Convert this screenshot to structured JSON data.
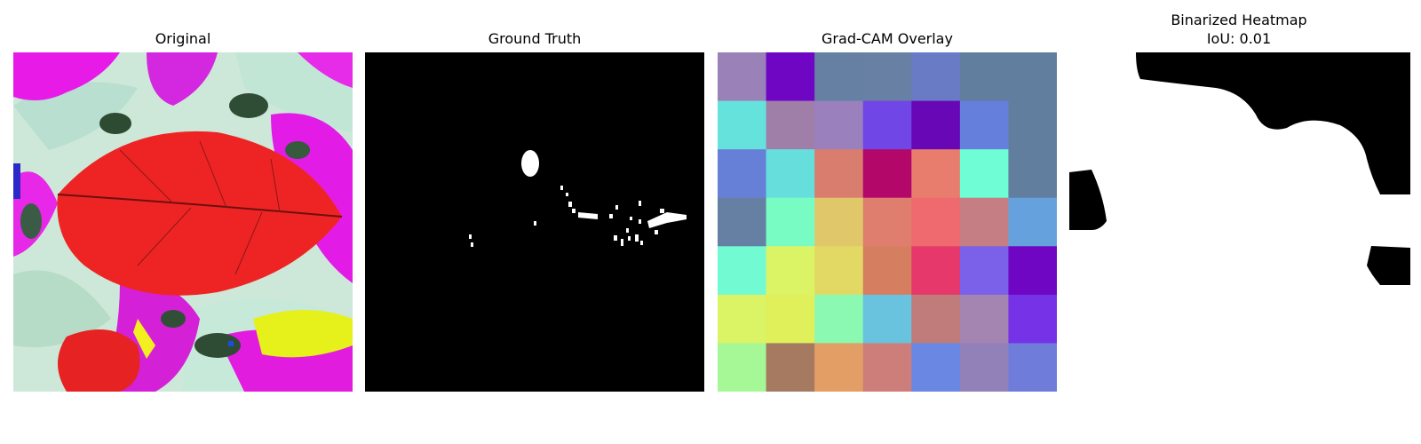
{
  "panels": {
    "original": {
      "title": "Original"
    },
    "ground_truth": {
      "title": "Ground Truth"
    },
    "gradcam": {
      "title": "Grad-CAM Overlay",
      "grid": [
        [
          "#9a82b8",
          "#6e06c4",
          "#6680a4",
          "#6780a4",
          "#6a7bc6",
          "#627e9e",
          "#627e9e"
        ],
        [
          "#66e2dc",
          "#9f7fa8",
          "#9a80bd",
          "#7146e6",
          "#6807b5",
          "#6480dc",
          "#627e9e"
        ],
        [
          "#6680d8",
          "#66dfdc",
          "#d97d6e",
          "#b3076a",
          "#e87d6e",
          "#6ffdd6",
          "#627e9e"
        ],
        [
          "#6680a4",
          "#79fcc4",
          "#e0c86a",
          "#df7e6e",
          "#ee6a6e",
          "#c47e84",
          "#65a1dd"
        ],
        [
          "#72fad2",
          "#dbf466",
          "#e2d964",
          "#d67e60",
          "#e6386a",
          "#7b60ea",
          "#6e06c4"
        ],
        [
          "#dbf466",
          "#dff05a",
          "#8bf9b1",
          "#69c2de",
          "#bf7c7b",
          "#a484b1",
          "#7532e6"
        ],
        [
          "#a6f796",
          "#a57a61",
          "#e29e64",
          "#cd7e7b",
          "#6a87e3",
          "#9280b8",
          "#6f7cda"
        ]
      ]
    },
    "binarized": {
      "title_line1": "Binarized Heatmap",
      "title_line2": "IoU: 0.01"
    }
  }
}
